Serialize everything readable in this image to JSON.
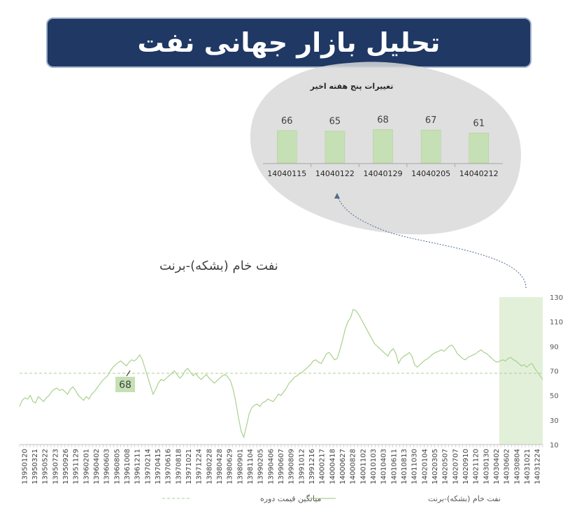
{
  "title": "تحلیل بازار جهانی نفت",
  "inset": {
    "title": "تغییرات پنج هفته اخیر",
    "categories": [
      "14040115",
      "14040122",
      "14040129",
      "14040205",
      "14040212"
    ],
    "values": [
      66,
      65,
      68,
      67,
      61
    ]
  },
  "chart_title": "نفت خام (بشکه)-برنت",
  "colors": {
    "line": "#a9d18e",
    "highlight": "#e2f0d9",
    "bar": "#c5e0b4",
    "average": "#a9d18e",
    "title_bg": "#1f3864"
  },
  "chart_data": {
    "type": "line",
    "title": "نفت خام (بشکه)-برنت",
    "ylim": [
      10,
      130
    ],
    "yticks": [
      10,
      30,
      50,
      70,
      90,
      110,
      130
    ],
    "y_axis_side": "right",
    "x_tick_labels": [
      "13950120",
      "13950321",
      "13950522",
      "13950723",
      "13950926",
      "13951129",
      "13960201",
      "13960402",
      "13960603",
      "13960805",
      "13961008",
      "13961211",
      "13970214",
      "13970415",
      "13970616",
      "13970818",
      "13971021",
      "13971224",
      "13980228",
      "13980428",
      "13980629",
      "13980901",
      "13981104",
      "13990205",
      "13990406",
      "13990607",
      "13990809",
      "13991012",
      "13991216",
      "14000217",
      "14000418",
      "14000627",
      "14000828",
      "14001102",
      "14010103",
      "14010403",
      "14010611",
      "14010813",
      "14011030",
      "14020104",
      "14020305",
      "14020507",
      "14020707",
      "14020910",
      "14021120",
      "14030130",
      "14030402",
      "14030602",
      "14030804",
      "14031021",
      "14031224"
    ],
    "average_value": 68,
    "average_label": "68",
    "highlight_period": "14030602–14040212",
    "legend_position": "bottom",
    "series": [
      {
        "name": "نفت خام (بشکه)-برنت",
        "style": "solid",
        "values": [
          41,
          46,
          48,
          47,
          50,
          45,
          44,
          49,
          47,
          45,
          48,
          50,
          53,
          55,
          56,
          54,
          55,
          53,
          51,
          55,
          57,
          54,
          50,
          48,
          46,
          49,
          47,
          51,
          53,
          56,
          59,
          62,
          64,
          66,
          70,
          73,
          75,
          77,
          78,
          76,
          74,
          77,
          79,
          78,
          80,
          83,
          79,
          72,
          65,
          58,
          51,
          55,
          60,
          63,
          62,
          64,
          66,
          68,
          70,
          67,
          64,
          66,
          70,
          72,
          69,
          66,
          68,
          65,
          63,
          65,
          67,
          64,
          62,
          60,
          62,
          64,
          66,
          67,
          65,
          62,
          55,
          45,
          32,
          21,
          16,
          25,
          35,
          40,
          42,
          43,
          41,
          44,
          45,
          47,
          46,
          45,
          48,
          51,
          50,
          53,
          56,
          60,
          62,
          65,
          66,
          68,
          69,
          71,
          73,
          75,
          78,
          79,
          77,
          76,
          80,
          84,
          85,
          82,
          79,
          80,
          87,
          95,
          104,
          110,
          113,
          120,
          119,
          116,
          112,
          108,
          104,
          100,
          96,
          92,
          90,
          88,
          86,
          84,
          82,
          86,
          88,
          84,
          76,
          80,
          82,
          83,
          85,
          82,
          75,
          73,
          75,
          77,
          79,
          80,
          82,
          84,
          85,
          86,
          87,
          86,
          88,
          90,
          91,
          88,
          84,
          82,
          80,
          79,
          81,
          82,
          83,
          84,
          86,
          87,
          85,
          84,
          82,
          80,
          78,
          77,
          78,
          79,
          78,
          80,
          81,
          79,
          78,
          76,
          74,
          75,
          73,
          75,
          76,
          72,
          69,
          66,
          63
        ]
      },
      {
        "name": "میانگین قیمت دوره",
        "style": "dashed",
        "constant": 68
      }
    ]
  }
}
